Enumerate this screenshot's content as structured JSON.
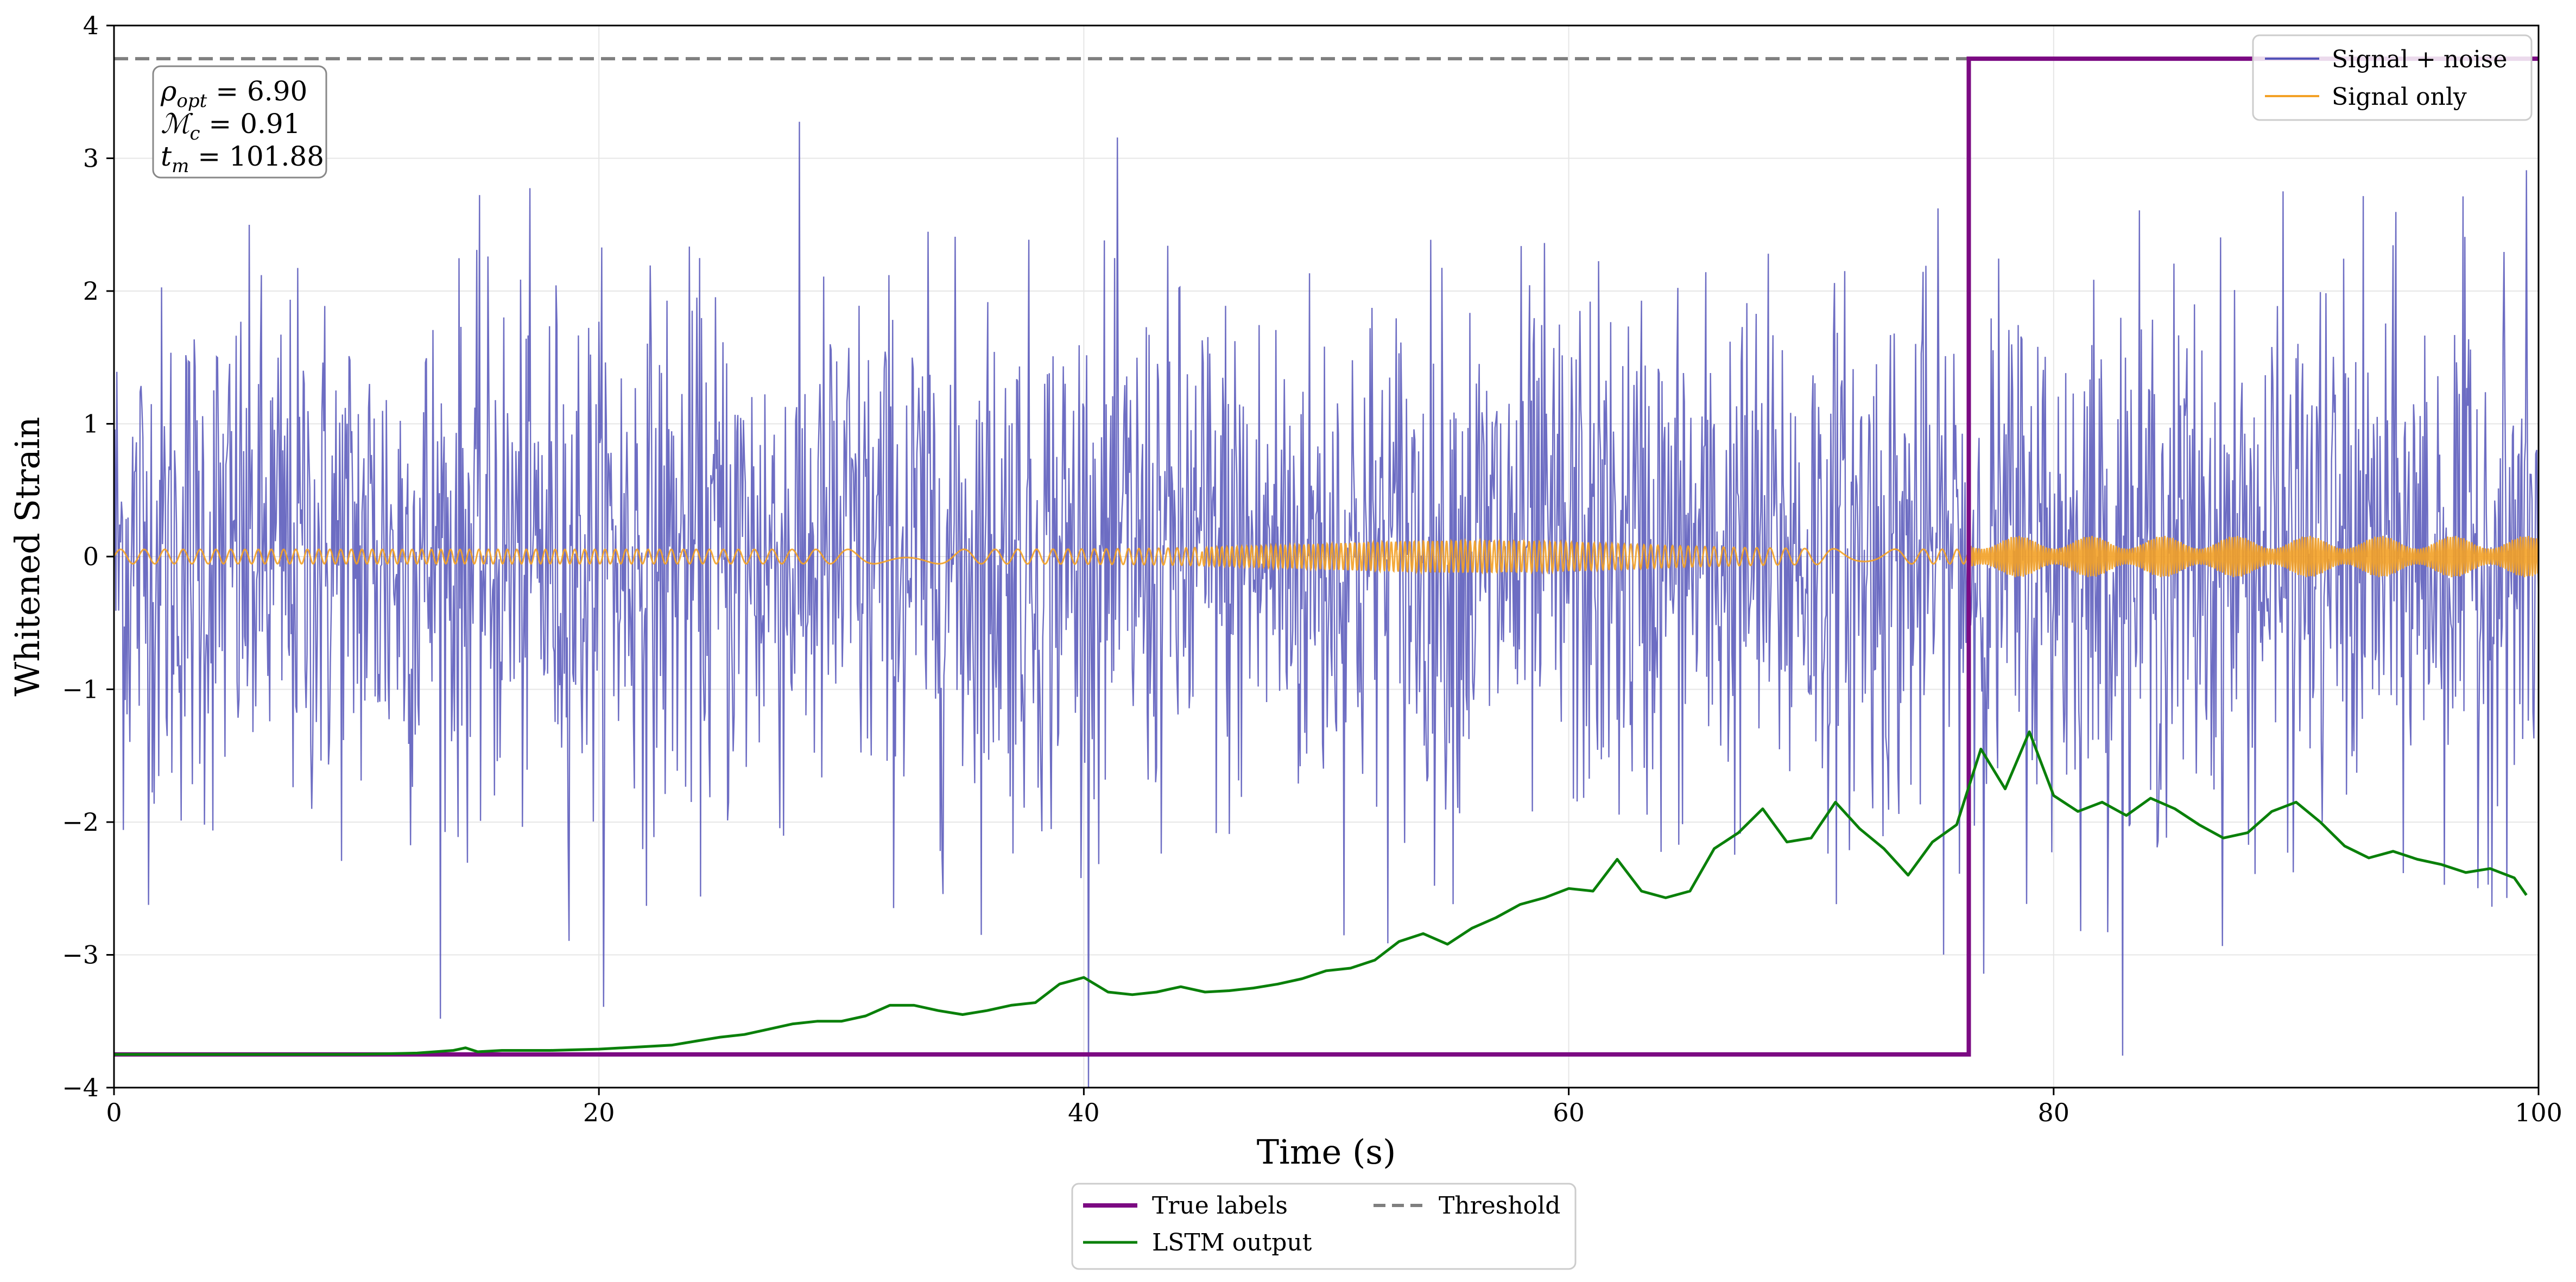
{
  "chart_data": {
    "type": "line",
    "xlabel": "Time (s)",
    "ylabel": "Whitened Strain",
    "xlim": [
      0,
      100
    ],
    "ylim": [
      -4,
      4
    ],
    "x_ticks": [
      "0",
      "20",
      "40",
      "60",
      "80",
      "100"
    ],
    "y_ticks": [
      "−4",
      "−3",
      "−2",
      "−1",
      "0",
      "1",
      "2",
      "3",
      "4"
    ],
    "grid": true,
    "colors": {
      "signal_noise": "#5353b8",
      "signal_only": "#f3a126",
      "true_labels": "#7b0a82",
      "lstm": "#0a800a",
      "threshold": "#7f7f7f"
    },
    "annotation": {
      "rho_value": "6.90",
      "mc_value": "0.91",
      "tm_value": "101.88"
    },
    "legend_top": {
      "placement": "top-right",
      "entries": [
        "Signal + noise",
        "Signal only"
      ]
    },
    "legend_bottom": {
      "placement": "below plot",
      "entries": [
        "True labels",
        "LSTM output",
        "Threshold"
      ]
    },
    "series": [
      {
        "name": "Signal + noise",
        "style": "noisy-trace",
        "amplitude_range": [
          -4,
          3.6
        ],
        "x_range": [
          0,
          100
        ]
      },
      {
        "name": "Signal only",
        "style": "chirp",
        "amplitude": 0.12,
        "x_range": [
          0,
          100
        ]
      },
      {
        "name": "True labels",
        "style": "step",
        "x": [
          0,
          76.5,
          76.5,
          100
        ],
        "y": [
          -3.75,
          -3.75,
          3.75,
          3.75
        ]
      },
      {
        "name": "Threshold",
        "style": "dashed",
        "y": 3.75
      },
      {
        "name": "LSTM output",
        "x": [
          0,
          5,
          10,
          12.5,
          14,
          14.5,
          15,
          16,
          18,
          20,
          21,
          22,
          23,
          24,
          25,
          26,
          27,
          28,
          29,
          30,
          31,
          32,
          33,
          34,
          35,
          36,
          37,
          38,
          39,
          40,
          41,
          42,
          43,
          44,
          45,
          46,
          47,
          48,
          49,
          50,
          51,
          52,
          53,
          54,
          55,
          56,
          57,
          58,
          59,
          60,
          61,
          62,
          63,
          64,
          65,
          66,
          67,
          68,
          69,
          70,
          71,
          72,
          73,
          74,
          75,
          76,
          77,
          78,
          79,
          80,
          81,
          82,
          83,
          84,
          85,
          86,
          87,
          88,
          89,
          90,
          91,
          92,
          93,
          94,
          95,
          96,
          97,
          98,
          99,
          99.5
        ],
        "y": [
          -3.75,
          -3.75,
          -3.75,
          -3.74,
          -3.72,
          -3.7,
          -3.73,
          -3.72,
          -3.72,
          -3.71,
          -3.7,
          -3.69,
          -3.68,
          -3.65,
          -3.62,
          -3.6,
          -3.56,
          -3.52,
          -3.5,
          -3.5,
          -3.46,
          -3.38,
          -3.38,
          -3.42,
          -3.45,
          -3.42,
          -3.38,
          -3.36,
          -3.22,
          -3.17,
          -3.28,
          -3.3,
          -3.28,
          -3.24,
          -3.28,
          -3.27,
          -3.25,
          -3.22,
          -3.18,
          -3.12,
          -3.1,
          -3.04,
          -2.9,
          -2.84,
          -2.92,
          -2.8,
          -2.72,
          -2.62,
          -2.57,
          -2.5,
          -2.52,
          -2.28,
          -2.52,
          -2.57,
          -2.52,
          -2.2,
          -2.08,
          -1.9,
          -2.15,
          -2.12,
          -1.85,
          -2.05,
          -2.2,
          -2.4,
          -2.15,
          -2.02,
          -1.45,
          -1.75,
          -1.32,
          -1.8,
          -1.92,
          -1.85,
          -1.95,
          -1.82,
          -1.9,
          -2.02,
          -2.12,
          -2.08,
          -1.92,
          -1.85,
          -2.0,
          -2.18,
          -2.27,
          -2.22,
          -2.28,
          -2.32,
          -2.38,
          -2.35,
          -2.42,
          -2.55
        ]
      }
    ]
  }
}
